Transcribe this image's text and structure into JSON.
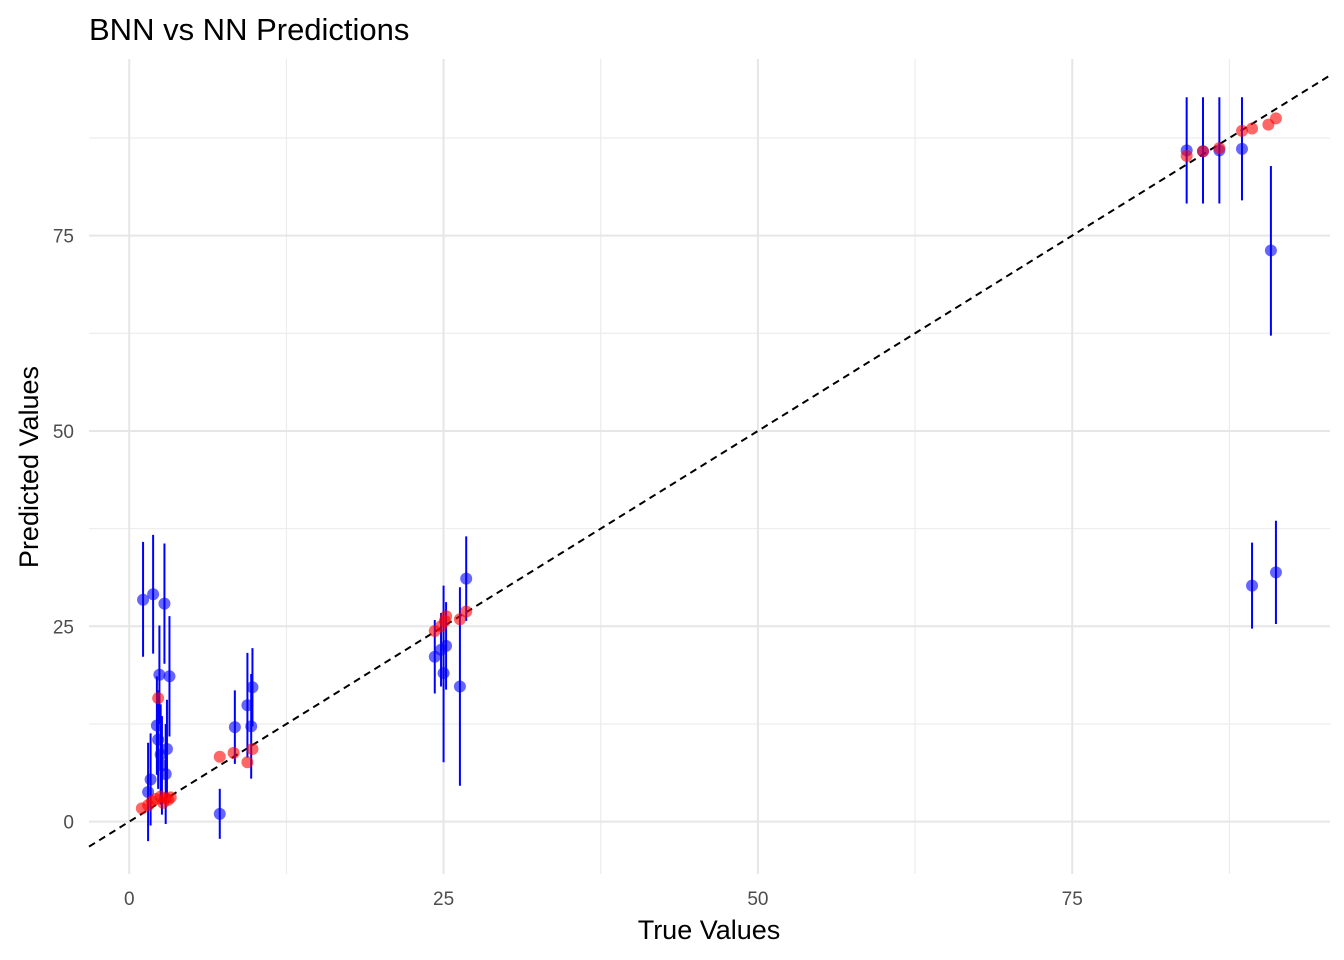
{
  "chart_data": {
    "type": "scatter",
    "title": "BNN vs NN Predictions",
    "xlabel": "True Values",
    "ylabel": "Predicted Values",
    "xlim": [
      -3.2,
      95.5
    ],
    "ylim": [
      -6.7,
      97.6
    ],
    "xticks": [
      0,
      25,
      50,
      75
    ],
    "yticks": [
      0,
      25,
      50,
      75
    ],
    "grid": true,
    "legend": "none",
    "reference_line": {
      "style": "dashed",
      "color": "#000000",
      "slope": 1,
      "intercept": 0
    },
    "series": [
      {
        "kind": "bnn",
        "color": "#0000ff",
        "points": [
          {
            "x": 1.1,
            "y": 28.4,
            "lo": 21.1,
            "hi": 35.8
          },
          {
            "x": 1.5,
            "y": 3.8,
            "lo": -2.5,
            "hi": 10.1
          },
          {
            "x": 1.7,
            "y": 5.4,
            "lo": -0.5,
            "hi": 11.3
          },
          {
            "x": 1.9,
            "y": 29.1,
            "lo": 21.5,
            "hi": 36.7
          },
          {
            "x": 2.2,
            "y": 12.3,
            "lo": 6.0,
            "hi": 18.6
          },
          {
            "x": 2.3,
            "y": 10.5,
            "lo": 4.2,
            "hi": 16.8
          },
          {
            "x": 2.4,
            "y": 18.8,
            "lo": 12.5,
            "hi": 25.1
          },
          {
            "x": 2.5,
            "y": 8.6,
            "lo": 2.2,
            "hi": 15.0
          },
          {
            "x": 2.6,
            "y": 7.2,
            "lo": 0.9,
            "hi": 13.5
          },
          {
            "x": 2.8,
            "y": 27.9,
            "lo": 20.2,
            "hi": 35.6
          },
          {
            "x": 2.9,
            "y": 6.1,
            "lo": -0.3,
            "hi": 12.5
          },
          {
            "x": 3.0,
            "y": 9.3,
            "lo": 3.0,
            "hi": 15.6
          },
          {
            "x": 3.2,
            "y": 18.6,
            "lo": 10.9,
            "hi": 26.3
          },
          {
            "x": 7.2,
            "y": 1.0,
            "lo": -2.2,
            "hi": 4.2
          },
          {
            "x": 8.4,
            "y": 12.1,
            "lo": 7.4,
            "hi": 16.8
          },
          {
            "x": 9.4,
            "y": 14.9,
            "lo": 8.2,
            "hi": 21.6
          },
          {
            "x": 9.7,
            "y": 12.2,
            "lo": 5.5,
            "hi": 18.9
          },
          {
            "x": 9.8,
            "y": 17.2,
            "lo": 12.2,
            "hi": 22.2
          },
          {
            "x": 24.3,
            "y": 21.1,
            "lo": 16.4,
            "hi": 25.8
          },
          {
            "x": 24.8,
            "y": 22.0,
            "lo": 17.3,
            "hi": 26.7
          },
          {
            "x": 25.0,
            "y": 19.0,
            "lo": 7.6,
            "hi": 30.2
          },
          {
            "x": 25.2,
            "y": 22.5,
            "lo": 16.9,
            "hi": 28.1
          },
          {
            "x": 26.3,
            "y": 17.3,
            "lo": 4.6,
            "hi": 30.0
          },
          {
            "x": 26.8,
            "y": 31.1,
            "lo": 25.7,
            "hi": 36.5
          },
          {
            "x": 84.1,
            "y": 85.9,
            "lo": 79.1,
            "hi": 92.7
          },
          {
            "x": 85.4,
            "y": 85.8,
            "lo": 79.1,
            "hi": 92.7
          },
          {
            "x": 86.7,
            "y": 85.9,
            "lo": 79.1,
            "hi": 92.7
          },
          {
            "x": 88.5,
            "y": 86.1,
            "lo": 79.5,
            "hi": 92.7
          },
          {
            "x": 89.3,
            "y": 30.2,
            "lo": 24.7,
            "hi": 35.7
          },
          {
            "x": 90.8,
            "y": 73.1,
            "lo": 62.2,
            "hi": 83.9
          },
          {
            "x": 91.2,
            "y": 31.9,
            "lo": 25.3,
            "hi": 38.5
          }
        ]
      },
      {
        "kind": "nn",
        "color": "#ff0000",
        "points": [
          {
            "x": 1.0,
            "y": 1.7
          },
          {
            "x": 1.5,
            "y": 2.1
          },
          {
            "x": 1.8,
            "y": 2.6
          },
          {
            "x": 2.1,
            "y": 2.9
          },
          {
            "x": 2.3,
            "y": 15.8
          },
          {
            "x": 2.5,
            "y": 3.2
          },
          {
            "x": 2.7,
            "y": 2.4
          },
          {
            "x": 2.9,
            "y": 3.0
          },
          {
            "x": 3.1,
            "y": 2.8
          },
          {
            "x": 3.3,
            "y": 3.1
          },
          {
            "x": 7.2,
            "y": 8.3
          },
          {
            "x": 8.3,
            "y": 8.8
          },
          {
            "x": 9.4,
            "y": 7.6
          },
          {
            "x": 9.8,
            "y": 9.3
          },
          {
            "x": 24.3,
            "y": 24.4
          },
          {
            "x": 24.8,
            "y": 25.0
          },
          {
            "x": 25.1,
            "y": 25.7
          },
          {
            "x": 25.2,
            "y": 26.3
          },
          {
            "x": 26.3,
            "y": 25.9
          },
          {
            "x": 26.8,
            "y": 26.9
          },
          {
            "x": 84.1,
            "y": 85.2
          },
          {
            "x": 85.4,
            "y": 85.8
          },
          {
            "x": 86.7,
            "y": 86.2
          },
          {
            "x": 88.5,
            "y": 88.4
          },
          {
            "x": 89.3,
            "y": 88.7
          },
          {
            "x": 90.6,
            "y": 89.2
          },
          {
            "x": 91.2,
            "y": 90.0
          }
        ]
      }
    ]
  }
}
